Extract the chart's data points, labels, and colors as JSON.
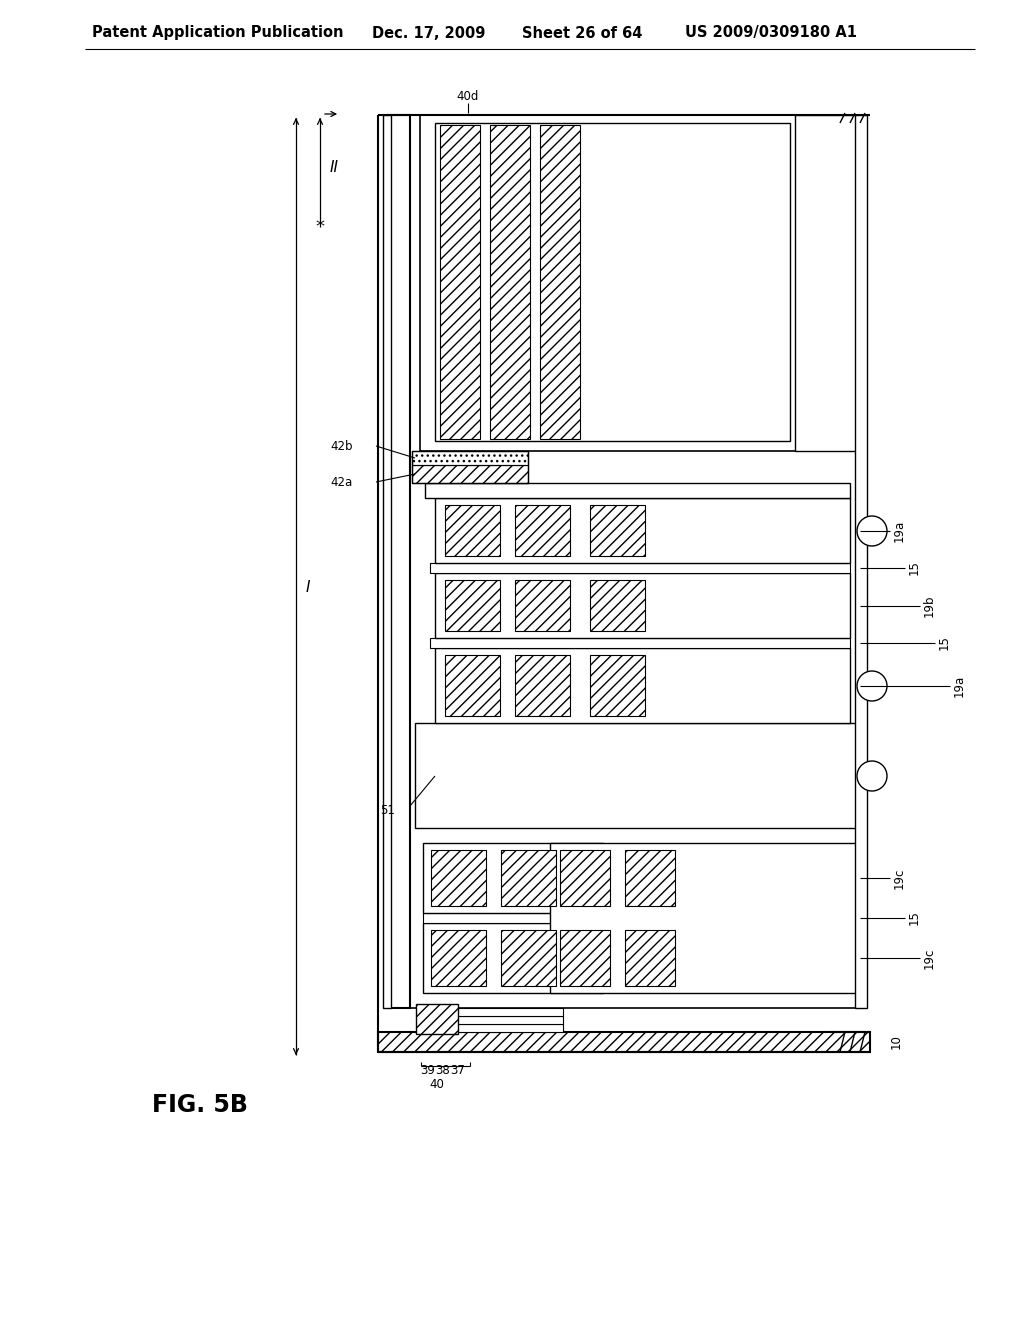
{
  "bg_color": "#ffffff",
  "header_text": "Patent Application Publication",
  "header_date": "Dec. 17, 2009",
  "header_sheet": "Sheet 26 of 64",
  "header_patent": "US 2009/0309180 A1",
  "figure_label": "FIG. 5B",
  "header_fontsize": 10.5,
  "fig_label_fontsize": 17,
  "label_fontsize": 9.0
}
